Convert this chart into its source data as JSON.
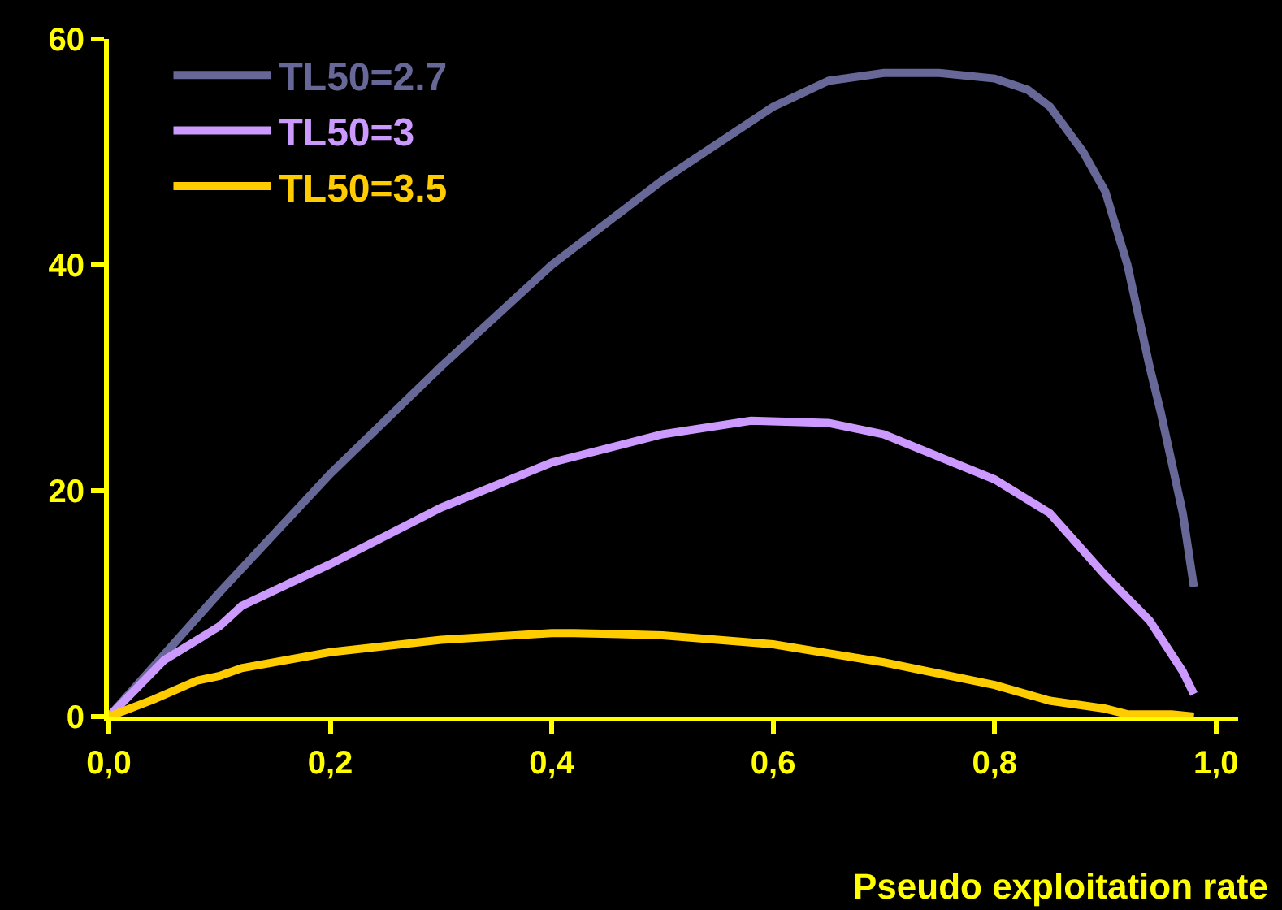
{
  "chart_data": {
    "type": "line",
    "xlabel": "Pseudo exploitation rate",
    "xlim": [
      0,
      1.02
    ],
    "xticks": [
      {
        "value": 0,
        "label": "0,0"
      },
      {
        "value": 0.2,
        "label": "0,2"
      },
      {
        "value": 0.4,
        "label": "0,4"
      },
      {
        "value": 0.6,
        "label": "0,6"
      },
      {
        "value": 0.8,
        "label": "0,8"
      },
      {
        "value": 1.0,
        "label": "1,0"
      }
    ],
    "ylim": [
      0,
      60
    ],
    "yticks": [
      0,
      20,
      40,
      60
    ],
    "grid": false,
    "legend": "top left",
    "marker": "none",
    "line_style": "solid",
    "series": [
      {
        "name": "TL50=2.7",
        "color": "#686898",
        "x": [
          0,
          0.1,
          0.2,
          0.3,
          0.4,
          0.5,
          0.6,
          0.65,
          0.7,
          0.75,
          0.8,
          0.83,
          0.85,
          0.88,
          0.9,
          0.92,
          0.94,
          0.95,
          0.97,
          0.98
        ],
        "values": [
          0,
          11,
          21.5,
          31,
          40,
          47.5,
          54,
          56.3,
          57,
          57,
          56.5,
          55.5,
          54,
          50,
          46.5,
          40,
          31,
          27,
          18,
          11.5
        ]
      },
      {
        "name": "TL50=3",
        "color": "#cc99ff",
        "x": [
          0,
          0.05,
          0.1,
          0.12,
          0.2,
          0.3,
          0.4,
          0.5,
          0.58,
          0.65,
          0.7,
          0.75,
          0.8,
          0.85,
          0.9,
          0.94,
          0.97,
          0.98
        ],
        "values": [
          0,
          5,
          8,
          9.8,
          13.5,
          18.5,
          22.5,
          25,
          26.2,
          26,
          25,
          23,
          21,
          18,
          12.5,
          8.5,
          4,
          2
        ]
      },
      {
        "name": "TL50=3.5",
        "color": "#ffcc00",
        "x": [
          0,
          0.04,
          0.08,
          0.1,
          0.12,
          0.2,
          0.3,
          0.4,
          0.42,
          0.5,
          0.6,
          0.7,
          0.8,
          0.85,
          0.9,
          0.92,
          0.96,
          0.98
        ],
        "values": [
          0,
          1.5,
          3.2,
          3.6,
          4.3,
          5.7,
          6.8,
          7.4,
          7.4,
          7.2,
          6.4,
          4.8,
          2.8,
          1.4,
          0.7,
          0.2,
          0.2,
          0
        ]
      }
    ]
  }
}
